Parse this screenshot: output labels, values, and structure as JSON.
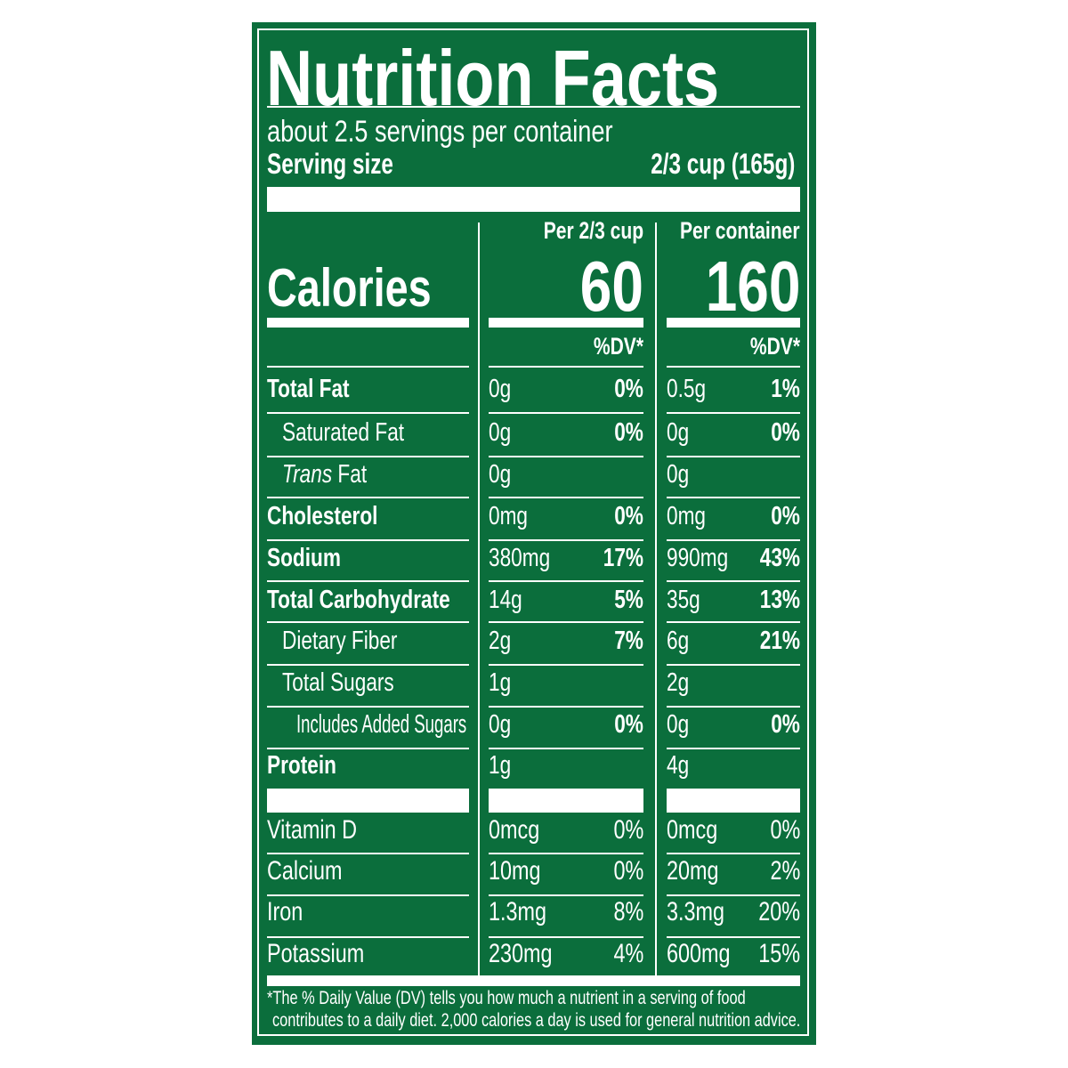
{
  "title": "Nutrition Facts",
  "servings": "about 2.5 servings per container",
  "serving_size_label": "Serving size",
  "serving_size_value": "2/3 cup (165g)",
  "calories_label": "Calories",
  "columns": [
    {
      "header": "Per 2/3 cup",
      "calories": "60",
      "dv_label": "%DV*"
    },
    {
      "header": "Per container",
      "calories": "160",
      "dv_label": "%DV*"
    }
  ],
  "nutrients": [
    {
      "name": "Total Fat",
      "bold": true,
      "indent": 0,
      "values": [
        [
          "0g",
          "0%"
        ],
        [
          "0.5g",
          "1%"
        ]
      ]
    },
    {
      "name": "Saturated Fat",
      "bold": false,
      "indent": 1,
      "values": [
        [
          "0g",
          "0%"
        ],
        [
          "0g",
          "0%"
        ]
      ]
    },
    {
      "name": "Trans Fat",
      "bold": false,
      "indent": 1,
      "italic_prefix": "Trans",
      "values": [
        [
          "0g",
          ""
        ],
        [
          "0g",
          ""
        ]
      ]
    },
    {
      "name": "Cholesterol",
      "bold": true,
      "indent": 0,
      "values": [
        [
          "0mg",
          "0%"
        ],
        [
          "0mg",
          "0%"
        ]
      ]
    },
    {
      "name": "Sodium",
      "bold": true,
      "indent": 0,
      "values": [
        [
          "380mg",
          "17%"
        ],
        [
          "990mg",
          "43%"
        ]
      ]
    },
    {
      "name": "Total Carbohydrate",
      "bold": true,
      "indent": 0,
      "values": [
        [
          "14g",
          "5%"
        ],
        [
          "35g",
          "13%"
        ]
      ]
    },
    {
      "name": "Dietary Fiber",
      "bold": false,
      "indent": 1,
      "values": [
        [
          "2g",
          "7%"
        ],
        [
          "6g",
          "21%"
        ]
      ]
    },
    {
      "name": "Total Sugars",
      "bold": false,
      "indent": 1,
      "values": [
        [
          "1g",
          ""
        ],
        [
          "2g",
          ""
        ]
      ]
    },
    {
      "name": "Includes Added Sugars",
      "bold": false,
      "indent": 2,
      "values": [
        [
          "0g",
          "0%"
        ],
        [
          "0g",
          "0%"
        ]
      ]
    },
    {
      "name": "Protein",
      "bold": true,
      "indent": 0,
      "values": [
        [
          "1g",
          ""
        ],
        [
          "4g",
          ""
        ]
      ]
    }
  ],
  "vitamins": [
    {
      "name": "Vitamin D",
      "values": [
        [
          "0mcg",
          "0%"
        ],
        [
          "0mcg",
          "0%"
        ]
      ]
    },
    {
      "name": "Calcium",
      "values": [
        [
          "10mg",
          "0%"
        ],
        [
          "20mg",
          "2%"
        ]
      ]
    },
    {
      "name": "Iron",
      "values": [
        [
          "1.3mg",
          "8%"
        ],
        [
          "3.3mg",
          "20%"
        ]
      ]
    },
    {
      "name": "Potassium",
      "values": [
        [
          "230mg",
          "4%"
        ],
        [
          "600mg",
          "15%"
        ]
      ]
    }
  ],
  "footnote_line1": "*The % Daily Value (DV) tells you how much a nutrient in a serving of food",
  "footnote_line2": "contributes to a daily diet. 2,000 calories a day is used for general nutrition advice.",
  "colors": {
    "background": "#0b6e3c",
    "text": "#ffffff"
  }
}
